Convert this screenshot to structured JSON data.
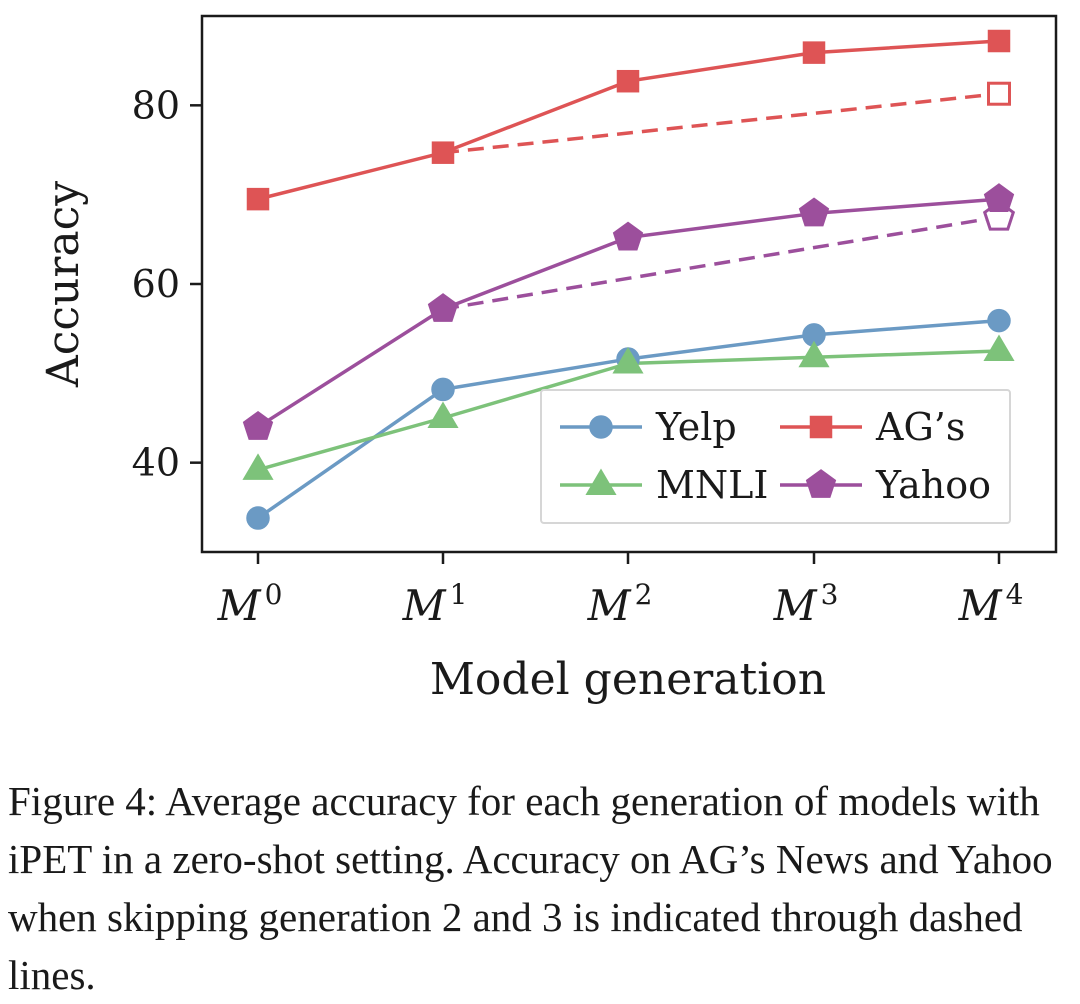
{
  "chart_data": {
    "type": "line",
    "categories": [
      "0",
      "1",
      "2",
      "3",
      "4"
    ],
    "category_prefix": "M",
    "xlabel": "Model generation",
    "ylabel": "Accuracy",
    "ylim": [
      30,
      90
    ],
    "yticks": [
      40,
      60,
      80
    ],
    "grid": false,
    "legend": "lower-right",
    "series": [
      {
        "name": "Yelp",
        "marker": "circle",
        "color": "#6b9ac4",
        "values": [
          33.8,
          48.2,
          51.6,
          54.3,
          55.9
        ]
      },
      {
        "name": "AG’s",
        "marker": "square",
        "color": "#de5455",
        "values": [
          69.5,
          74.7,
          82.7,
          85.9,
          87.2
        ]
      },
      {
        "name": "MNLI",
        "marker": "triangle",
        "color": "#7dc27a",
        "values": [
          39.2,
          45.0,
          51.1,
          51.8,
          52.5
        ]
      },
      {
        "name": "Yahoo",
        "marker": "pentagon",
        "color": "#9c4f9c",
        "values": [
          44.0,
          57.2,
          65.2,
          67.9,
          69.5
        ]
      }
    ],
    "dashed_series": [
      {
        "of": "AG’s",
        "marker": "square-open",
        "color": "#de5455",
        "x": [
          "1",
          "4"
        ],
        "values": [
          74.7,
          81.3
        ]
      },
      {
        "of": "Yahoo",
        "marker": "pentagon-open",
        "color": "#9c4f9c",
        "x": [
          "1",
          "4"
        ],
        "values": [
          57.2,
          67.5
        ]
      }
    ]
  },
  "caption": {
    "label": "Figure 4:",
    "text": "Average accuracy for each generation of models with iPET in a zero-shot setting. Accuracy on AG’s News and Yahoo when skipping generation 2 and 3 is indicated through dashed lines."
  }
}
